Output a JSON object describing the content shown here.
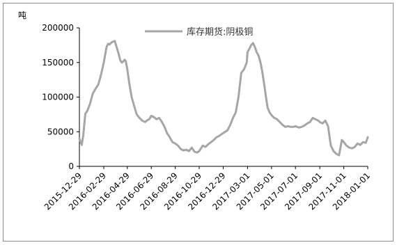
{
  "chart_data": {
    "type": "line",
    "unit_label": "吨",
    "legend": "库存期货:阴极铜",
    "series_color": "#a6a6a6",
    "ylim": [
      0,
      200000
    ],
    "yticks": [
      "0",
      "50000",
      "100000",
      "150000",
      "200000"
    ],
    "xlim": [
      "2015-12-29",
      "2018-01-01"
    ],
    "xticks": [
      "2015-12-29",
      "2016-02-29",
      "2016-04-29",
      "2016-06-29",
      "2016-08-29",
      "2016-10-29",
      "2016-12-29",
      "2017-03-01",
      "2017-05-01",
      "2017-07-01",
      "2017-09-01",
      "2017-11-01",
      "2018-01-01"
    ],
    "grid": false,
    "legend_position": "top-center",
    "series": [
      {
        "x": [
          "2015-12-29",
          "2016-01-04",
          "2016-01-08",
          "2016-01-13",
          "2016-01-18",
          "2016-01-25",
          "2016-02-01",
          "2016-02-08",
          "2016-02-15",
          "2016-02-22",
          "2016-02-29",
          "2016-03-07",
          "2016-03-11",
          "2016-03-15",
          "2016-03-18",
          "2016-03-23",
          "2016-03-28",
          "2016-04-04",
          "2016-04-08",
          "2016-04-11",
          "2016-04-15",
          "2016-04-18",
          "2016-04-22",
          "2016-04-25",
          "2016-04-29",
          "2016-05-04",
          "2016-05-10",
          "2016-05-16",
          "2016-05-23",
          "2016-05-30",
          "2016-06-06",
          "2016-06-13",
          "2016-06-20",
          "2016-06-24",
          "2016-06-29",
          "2016-07-06",
          "2016-07-12",
          "2016-07-19",
          "2016-07-25",
          "2016-08-01",
          "2016-08-08",
          "2016-08-15",
          "2016-08-22",
          "2016-08-29",
          "2016-09-05",
          "2016-09-12",
          "2016-09-19",
          "2016-09-26",
          "2016-10-03",
          "2016-10-10",
          "2016-10-17",
          "2016-10-24",
          "2016-10-29",
          "2016-11-07",
          "2016-11-14",
          "2016-11-21",
          "2016-11-28",
          "2016-12-05",
          "2016-12-12",
          "2016-12-19",
          "2016-12-29",
          "2017-01-09",
          "2017-01-16",
          "2017-01-23",
          "2017-01-30",
          "2017-02-06",
          "2017-02-13",
          "2017-02-20",
          "2017-02-27",
          "2017-03-01",
          "2017-03-06",
          "2017-03-10",
          "2017-03-15",
          "2017-03-20",
          "2017-03-24",
          "2017-03-29",
          "2017-04-03",
          "2017-04-07",
          "2017-04-12",
          "2017-04-17",
          "2017-04-21",
          "2017-04-26",
          "2017-05-01",
          "2017-05-08",
          "2017-05-15",
          "2017-05-22",
          "2017-05-29",
          "2017-06-05",
          "2017-06-12",
          "2017-06-19",
          "2017-06-26",
          "2017-07-01",
          "2017-07-10",
          "2017-07-17",
          "2017-07-24",
          "2017-07-31",
          "2017-08-07",
          "2017-08-14",
          "2017-08-21",
          "2017-08-28",
          "2017-09-01",
          "2017-09-08",
          "2017-09-15",
          "2017-09-22",
          "2017-09-29",
          "2017-10-06",
          "2017-10-13",
          "2017-10-20",
          "2017-10-27",
          "2017-11-01",
          "2017-11-08",
          "2017-11-15",
          "2017-11-22",
          "2017-11-29",
          "2017-12-06",
          "2017-12-13",
          "2017-12-20",
          "2017-12-27",
          "2018-01-01"
        ],
        "y": [
          40000,
          31000,
          45000,
          76000,
          80000,
          90000,
          105000,
          112000,
          118000,
          132000,
          150000,
          172000,
          177000,
          176000,
          178000,
          180000,
          181000,
          168000,
          160000,
          153000,
          150000,
          151000,
          154000,
          152000,
          140000,
          120000,
          100000,
          88000,
          75000,
          70000,
          66000,
          64000,
          67000,
          68000,
          73000,
          71000,
          68000,
          70000,
          65000,
          58000,
          48000,
          42000,
          35000,
          33000,
          30000,
          25000,
          23000,
          24000,
          22000,
          27000,
          21000,
          20000,
          22000,
          30000,
          28000,
          32000,
          35000,
          38000,
          42000,
          44000,
          48000,
          52000,
          60000,
          70000,
          78000,
          100000,
          135000,
          140000,
          150000,
          165000,
          170000,
          175000,
          178000,
          172000,
          165000,
          160000,
          150000,
          138000,
          120000,
          100000,
          85000,
          78000,
          74000,
          70000,
          68000,
          64000,
          60000,
          57000,
          58000,
          57000,
          57000,
          58000,
          56000,
          57000,
          59000,
          62000,
          64000,
          70000,
          68000,
          66000,
          64000,
          62000,
          66000,
          58000,
          30000,
          22000,
          18000,
          16000,
          38000,
          35000,
          30000,
          27000,
          26000,
          28000,
          33000,
          31000,
          35000,
          34000,
          42000
        ]
      }
    ]
  }
}
